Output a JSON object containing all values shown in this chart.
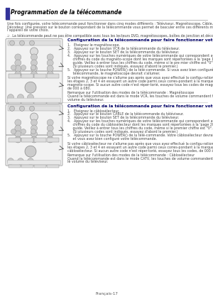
{
  "bg_color": "#ffffff",
  "title": "Programmation de la télécommande",
  "intro_line1": "Une fois configurée, votre télécommande peut fonctionner dans cinq modes différents : Téléviseur, Magnétoscope, Câble, Lecteur DVD ou",
  "intro_line2": "Décodeur. Une pression sur le bouton correspondant de la télécommande vous permet de basculer entre ces différents modes et de contrôler",
  "intro_line3": "l'appareil de votre choix.",
  "note": "☞  La télécommande peut ne pas être compatible avec tous les lecteurs DVD, magnétoscopes, boîtes de jonction et décodeurs.",
  "sec1_title": "Configuration de la télécommande pour faire fonctionner votre magnétoscope",
  "sec1_s1": "1.   Éteignez le magnétoscope.",
  "sec1_s2": "2.   Appuyez sur le bouton VCR de la télécommande du téléviseur.",
  "sec1_s3": "3.   Appuyez sur le bouton SET de la télécommande du téléviseur.",
  "sec1_s4a": "4.   Appuyez sur les touches numériques de votre télécommande qui correspondent aux trois",
  "sec1_s4b": "     chiffres du code du magnéto-scope dont les marques sont répertoriées à la 'page 19' du présent",
  "sec1_s4c": "     guide. Veillez à entrer tous les chiffres du code, même si le pre mier chiffre est \"0\".",
  "sec1_s4d": "     (Si plusieurs codes sont indiqués, essayez d'abord le premier.)",
  "sec1_s5a": "5.   Appuyez sur la touche POWER() de la télé-commande. Si vous avez bien configuré la",
  "sec1_s5b": "     télécommande, le magnétoscope devrait s'allumer.",
  "sec1_extra1": "Si votre magnétoscope ne s'allume pas après que vous ayez effectué la configu-ration, répétez",
  "sec1_extra2": "les étapes 2, 3 et 4 en essayant un autre code parmi ceux corres-pondant à la marque de votre",
  "sec1_extra3": "magnéto-scope. Si aucun autre code n'est réper-torié, essayez tous les codes de magnéto-scope,",
  "sec1_extra4": "de 000 à 080.",
  "sec1_note1": "Remarque sur l'utilisation des modes de la télécommande : Magnétoscope",
  "sec1_note2": "Quand la télécommande est dans le mode VCR, les touches de volume commandent toujours le",
  "sec1_note3": "volume du téléviseur.",
  "sec2_title": "Configuration de la télécommande pour faire fonctionner votre câblosélecteur",
  "sec2_s1": "1.   Éteignez le câblosélecteur.",
  "sec2_s2": "2.   Appuyez sur le bouton CABLE de la télécommande du téléviseur.",
  "sec2_s3": "3.   Appuyez sur le bouton SET de la télécommande du téléviseur.",
  "sec2_s4a": "4.   Appuyez sur les touches numériques de votre télécommande qui correspondent aux trois",
  "sec2_s4b": "     chiffres du code du câblosélecteur dont les marques sont répertoriées à la 'page 20' du présent",
  "sec2_s4c": "     guide. Veillez à entrer tous les chiffres du code, même si le premier chiffre est \"0\".",
  "sec2_s4d": "     (Si plusieurs codes sont indiqués, essayez d'abord le premier.)",
  "sec2_s5a": "5.   Appuyez sur la touche POWER() de la télé-commande. Votre câblosélecteur devrait s'allumer",
  "sec2_s5b": "     et vous avez bien configuré votre télécommande.",
  "sec2_extra1": "Si votre câblosélecteur ne s'allume pas après que vous ayez effectué la configu-ration, répétez",
  "sec2_extra2": "les étapes 2, 3 et 4 en essayant un autre code parmi ceux corres-pondant à la marque de votre",
  "sec2_extra3": "câblosélecteur. Si aucun autre code n'est réper-torié, essayez tous les codes, de 000 à 008.",
  "sec2_note1": "Remarque sur l'utilisation des modes de la télécommande : Câblosélecteur",
  "sec2_note2": "Quand la télécommande est dans le mode CATV, les touches de volume commandent tou-jours",
  "sec2_note3": "le volume du téléviseur.",
  "footer": "Français-17",
  "text_color": "#444444",
  "title_color": "#000000",
  "sec_title_color": "#000066",
  "bar_color": "#333399",
  "remote_face": "#f5f5f5",
  "remote_edge": "#888888",
  "remote_btn": "#cccccc",
  "remote_btn_dark": "#999999",
  "sep_color": "#cccccc"
}
